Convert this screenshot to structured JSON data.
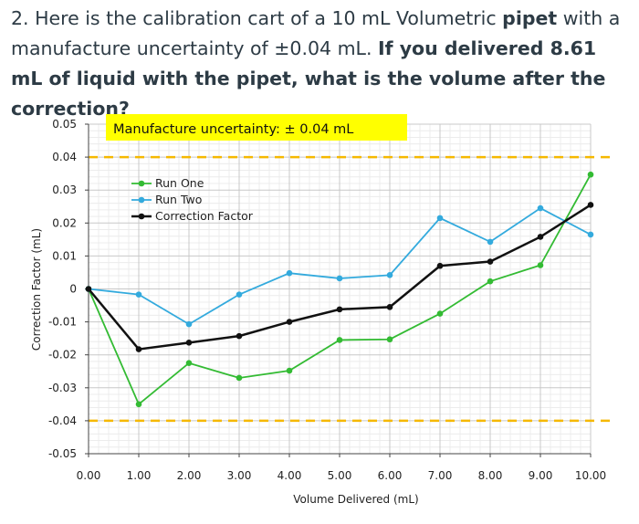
{
  "question": {
    "part1": "2. Here is the calibration cart of a 10 mL Volumetric ",
    "bold1": "pipet",
    "part2": " with a manufacture uncertainty of ±0.04 mL. ",
    "bold2": "If you delivered 8.61 mL of liquid with the pipet, what is the volume after the correction?"
  },
  "chart_data": {
    "type": "line",
    "title": "",
    "xlabel": "Volume Delivered (mL)",
    "ylabel": "Correction Factor (mL)",
    "xlim": [
      0,
      10
    ],
    "ylim": [
      -0.05,
      0.05
    ],
    "x_ticks": [
      "0.00",
      "1.00",
      "2.00",
      "3.00",
      "4.00",
      "5.00",
      "6.00",
      "7.00",
      "8.00",
      "9.00",
      "10.00"
    ],
    "y_ticks": [
      "0.05",
      "0.04",
      "0.03",
      "0.02",
      "0.01",
      "0",
      "-0.01",
      "-0.02",
      "-0.03",
      "-0.04",
      "-0.05"
    ],
    "grid": true,
    "legend_position": "top-left",
    "x": [
      0,
      1,
      2,
      3,
      4,
      5,
      6,
      7,
      8,
      9,
      10
    ],
    "series": [
      {
        "name": "Run One",
        "color": "#33bb33",
        "values": [
          0,
          -0.035,
          -0.0225,
          -0.027,
          -0.0248,
          -0.0155,
          -0.0153,
          -0.0075,
          0.0023,
          0.0072,
          0.0347
        ]
      },
      {
        "name": "Run Two",
        "color": "#33aadd",
        "values": [
          0,
          -0.0017,
          -0.0107,
          -0.0017,
          0.0048,
          0.0032,
          0.0042,
          0.0215,
          0.0143,
          0.0245,
          0.0165
        ]
      },
      {
        "name": "Correction Factor",
        "color": "#111111",
        "values": [
          0,
          -0.0183,
          -0.0163,
          -0.0143,
          -0.01,
          -0.0062,
          -0.0055,
          0.007,
          0.0083,
          0.0158,
          0.0255
        ]
      }
    ],
    "reference_lines": [
      {
        "y": 0.04,
        "color": "#f5b800"
      },
      {
        "y": -0.04,
        "color": "#f5b800"
      }
    ],
    "annotation": {
      "text": "Manufacture uncertainty: ± 0.04 mL",
      "background": "#ffff00"
    }
  }
}
